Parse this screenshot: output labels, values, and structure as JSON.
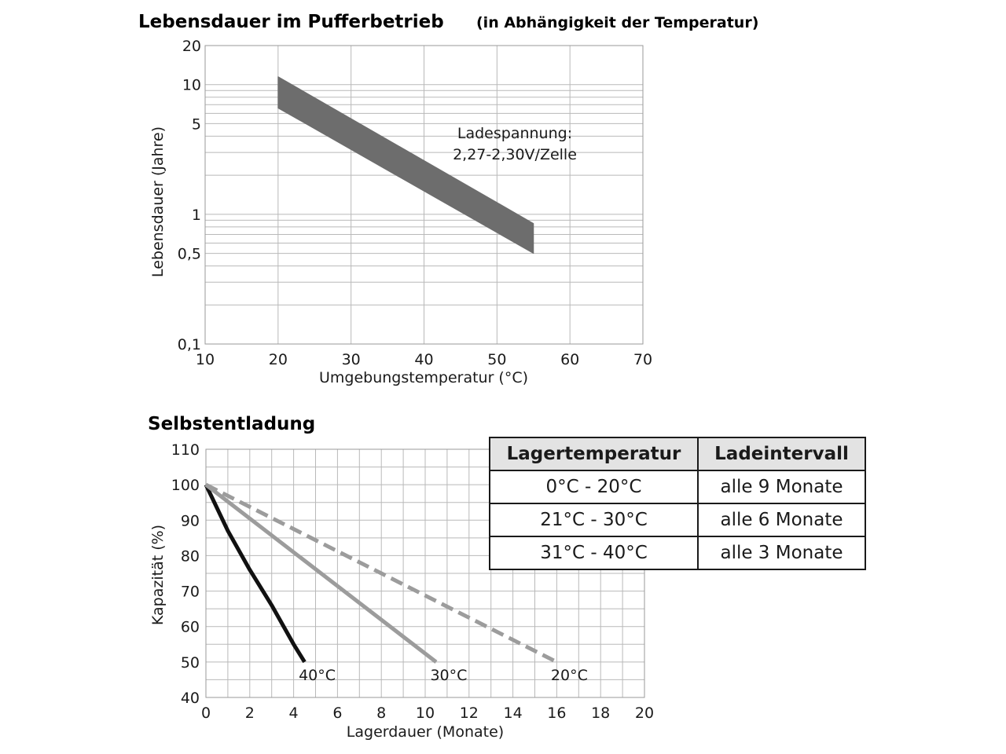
{
  "chart_data": [
    {
      "type": "area",
      "title": "Lebensdauer im Pufferbetrieb",
      "subtitle": "(in Abhängigkeit der Temperatur)",
      "xlabel": "Umgebungstemperatur (°C)",
      "ylabel": "Lebensdauer (Jahre)",
      "x_ticks": [
        10,
        20,
        30,
        40,
        50,
        60,
        70
      ],
      "y_ticks": [
        0.1,
        0.5,
        1,
        5,
        10,
        20
      ],
      "y_tick_labels": [
        "0,1",
        "0,5",
        "1",
        "5",
        "10",
        "20"
      ],
      "y_scale": "log",
      "xlim": [
        10,
        70
      ],
      "ylim": [
        0.1,
        20
      ],
      "grid": true,
      "band": {
        "x": [
          20,
          55
        ],
        "upper": [
          11.5,
          0.85
        ],
        "lower": [
          6.6,
          0.5
        ]
      },
      "annotation": [
        "Ladespannung:",
        "2,27-2,30V/Zelle"
      ],
      "band_color": "#6d6d6d"
    },
    {
      "type": "line",
      "title": "Selbstentladung",
      "xlabel": "Lagerdauer (Monate)",
      "ylabel": "Kapazität (%)",
      "x_ticks": [
        0,
        2,
        4,
        6,
        8,
        10,
        12,
        14,
        16,
        18,
        20
      ],
      "y_ticks": [
        40,
        50,
        60,
        70,
        80,
        90,
        100,
        110
      ],
      "xlim": [
        0,
        20
      ],
      "ylim": [
        40,
        110
      ],
      "grid": true,
      "series": [
        {
          "name": "40°C",
          "x": [
            0,
            1,
            2,
            3,
            4,
            4.5
          ],
          "y": [
            100,
            87,
            76,
            66,
            55,
            50
          ],
          "color": "#111111",
          "dash": "solid"
        },
        {
          "name": "30°C",
          "x": [
            0,
            10.5
          ],
          "y": [
            100,
            50
          ],
          "color": "#9c9c9c",
          "dash": "solid"
        },
        {
          "name": "20°C",
          "x": [
            0,
            16
          ],
          "y": [
            100,
            50
          ],
          "color": "#9c9c9c",
          "dash": "dashed"
        }
      ],
      "table": {
        "headers": [
          "Lagertemperatur",
          "Ladeintervall"
        ],
        "rows": [
          [
            "0°C - 20°C",
            "alle 9 Monate"
          ],
          [
            "21°C - 30°C",
            "alle 6 Monate"
          ],
          [
            "31°C - 40°C",
            "alle 3 Monate"
          ]
        ]
      }
    }
  ]
}
